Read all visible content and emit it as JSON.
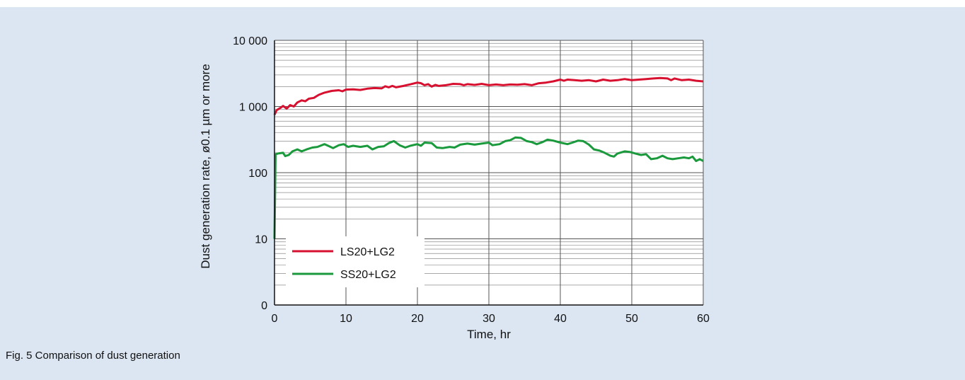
{
  "caption": "Fig. 5  Comparison of dust generation",
  "chart_data": {
    "type": "line",
    "xlabel": "Time, hr",
    "ylabel": "Dust generation rate, ø0.1 µm or more",
    "x_ticks": [
      0,
      10,
      20,
      30,
      40,
      50,
      60
    ],
    "x_tick_labels": [
      "0",
      "10",
      "20",
      "30",
      "40",
      "50",
      "60"
    ],
    "y_ticks": [
      0,
      10,
      100,
      1000,
      10000
    ],
    "y_tick_labels": [
      "0",
      "10",
      "100",
      "1 000",
      "10 000"
    ],
    "xlim": [
      0,
      60
    ],
    "y_scale": "log (with 0 at bottom decade)",
    "grid": true,
    "legend_position": "lower-left",
    "series": [
      {
        "name": "LS20+LG2",
        "color": "#d7102f",
        "points": [
          [
            0,
            750
          ],
          [
            0.3,
            880
          ],
          [
            0.8,
            950
          ],
          [
            1.2,
            1020
          ],
          [
            1.7,
            930
          ],
          [
            2.2,
            1050
          ],
          [
            2.7,
            1000
          ],
          [
            3.2,
            1150
          ],
          [
            3.8,
            1240
          ],
          [
            4.3,
            1200
          ],
          [
            4.8,
            1310
          ],
          [
            5.5,
            1350
          ],
          [
            6.2,
            1500
          ],
          [
            7,
            1620
          ],
          [
            8,
            1720
          ],
          [
            9,
            1760
          ],
          [
            9.5,
            1700
          ],
          [
            10,
            1800
          ],
          [
            11,
            1820
          ],
          [
            12,
            1780
          ],
          [
            13,
            1860
          ],
          [
            14,
            1900
          ],
          [
            15,
            1880
          ],
          [
            15.5,
            2020
          ],
          [
            16,
            1950
          ],
          [
            16.5,
            2050
          ],
          [
            17,
            1950
          ],
          [
            18,
            2040
          ],
          [
            19,
            2160
          ],
          [
            20,
            2300
          ],
          [
            20.5,
            2250
          ],
          [
            21,
            2100
          ],
          [
            21.5,
            2180
          ],
          [
            22,
            2000
          ],
          [
            22.5,
            2120
          ],
          [
            23,
            2050
          ],
          [
            24,
            2100
          ],
          [
            25,
            2200
          ],
          [
            26,
            2180
          ],
          [
            26.5,
            2100
          ],
          [
            27,
            2180
          ],
          [
            28,
            2120
          ],
          [
            29,
            2200
          ],
          [
            30,
            2100
          ],
          [
            31,
            2150
          ],
          [
            32,
            2100
          ],
          [
            33,
            2150
          ],
          [
            34,
            2130
          ],
          [
            35,
            2180
          ],
          [
            36,
            2100
          ],
          [
            37,
            2250
          ],
          [
            38,
            2300
          ],
          [
            39,
            2400
          ],
          [
            40,
            2550
          ],
          [
            40.5,
            2450
          ],
          [
            41,
            2550
          ],
          [
            42,
            2500
          ],
          [
            43,
            2450
          ],
          [
            44,
            2500
          ],
          [
            45,
            2400
          ],
          [
            46,
            2550
          ],
          [
            47,
            2450
          ],
          [
            48,
            2500
          ],
          [
            49,
            2600
          ],
          [
            50,
            2500
          ],
          [
            51,
            2550
          ],
          [
            52,
            2600
          ],
          [
            53,
            2650
          ],
          [
            54,
            2700
          ],
          [
            55,
            2650
          ],
          [
            55.5,
            2500
          ],
          [
            56,
            2650
          ],
          [
            57,
            2500
          ],
          [
            58,
            2550
          ],
          [
            59,
            2450
          ],
          [
            60,
            2400
          ]
        ]
      },
      {
        "name": "SS20+LG2",
        "color": "#1a9a3c",
        "points": [
          [
            0,
            10
          ],
          [
            0.15,
            190
          ],
          [
            0.5,
            195
          ],
          [
            1.2,
            200
          ],
          [
            1.5,
            178
          ],
          [
            2,
            185
          ],
          [
            2.5,
            210
          ],
          [
            3.2,
            225
          ],
          [
            3.8,
            210
          ],
          [
            4.5,
            225
          ],
          [
            5.3,
            240
          ],
          [
            6,
            245
          ],
          [
            7,
            270
          ],
          [
            7.5,
            255
          ],
          [
            8.2,
            235
          ],
          [
            9,
            260
          ],
          [
            9.7,
            270
          ],
          [
            10.3,
            245
          ],
          [
            11,
            255
          ],
          [
            12,
            245
          ],
          [
            13,
            255
          ],
          [
            13.7,
            225
          ],
          [
            14.5,
            245
          ],
          [
            15.3,
            250
          ],
          [
            16,
            280
          ],
          [
            16.7,
            300
          ],
          [
            17.5,
            260
          ],
          [
            18.3,
            240
          ],
          [
            19,
            255
          ],
          [
            20,
            270
          ],
          [
            20.5,
            255
          ],
          [
            21,
            285
          ],
          [
            22,
            280
          ],
          [
            22.7,
            240
          ],
          [
            23.5,
            235
          ],
          [
            24.5,
            245
          ],
          [
            25.2,
            240
          ],
          [
            26,
            265
          ],
          [
            27,
            275
          ],
          [
            28,
            265
          ],
          [
            29,
            275
          ],
          [
            30,
            285
          ],
          [
            30.5,
            260
          ],
          [
            31.5,
            270
          ],
          [
            32.3,
            300
          ],
          [
            33,
            310
          ],
          [
            33.7,
            340
          ],
          [
            34.5,
            335
          ],
          [
            35.3,
            300
          ],
          [
            36,
            290
          ],
          [
            36.7,
            270
          ],
          [
            37.5,
            290
          ],
          [
            38.2,
            315
          ],
          [
            39,
            305
          ],
          [
            40,
            285
          ],
          [
            41,
            270
          ],
          [
            41.7,
            285
          ],
          [
            42.5,
            305
          ],
          [
            43.2,
            300
          ],
          [
            44,
            265
          ],
          [
            44.7,
            225
          ],
          [
            45.5,
            215
          ],
          [
            46.2,
            200
          ],
          [
            47,
            180
          ],
          [
            47.5,
            175
          ],
          [
            48,
            195
          ],
          [
            49,
            210
          ],
          [
            49.8,
            205
          ],
          [
            50.5,
            195
          ],
          [
            51.3,
            185
          ],
          [
            52,
            190
          ],
          [
            52.7,
            160
          ],
          [
            53.5,
            165
          ],
          [
            54.3,
            180
          ],
          [
            55,
            165
          ],
          [
            55.7,
            160
          ],
          [
            56.5,
            165
          ],
          [
            57.3,
            170
          ],
          [
            58,
            165
          ],
          [
            58.5,
            175
          ],
          [
            59,
            150
          ],
          [
            59.5,
            160
          ],
          [
            60,
            150
          ]
        ]
      }
    ]
  }
}
